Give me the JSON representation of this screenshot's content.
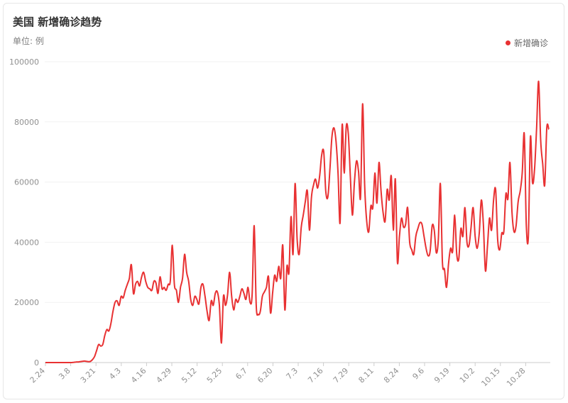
{
  "header": {
    "title": "美国 新增确诊趋势",
    "unit": "单位: 例"
  },
  "colors": {
    "series": "#e83132",
    "grid": "#f1f1f1",
    "axis": "#cccccc"
  },
  "chart_data": {
    "type": "line",
    "title": "美国 新增确诊趋势",
    "ylabel": "单位: 例",
    "xlabel": "",
    "ylim": [
      0,
      100000
    ],
    "yticks": [
      0,
      20000,
      40000,
      60000,
      80000,
      100000
    ],
    "xtick_labels": [
      "2.24",
      "3.8",
      "3.21",
      "4.3",
      "4.16",
      "4.29",
      "5.12",
      "5.25",
      "6.7",
      "6.20",
      "7.3",
      "7.16",
      "7.29",
      "8.11",
      "8.24",
      "9.6",
      "9.19",
      "10.2",
      "10.15",
      "10.28"
    ],
    "grid": true,
    "legend_position": "top-right",
    "series": [
      {
        "name": "新增确诊",
        "values": [
          0,
          0,
          0,
          0,
          0,
          0,
          0,
          0,
          0,
          0,
          0,
          0,
          0,
          0,
          100,
          200,
          200,
          300,
          400,
          500,
          400,
          300,
          400,
          1000,
          2000,
          4000,
          6000,
          5500,
          6000,
          9000,
          11000,
          10500,
          13000,
          17000,
          20000,
          20500,
          19000,
          22000,
          21500,
          24000,
          26000,
          28000,
          32500,
          23000,
          26000,
          27000,
          25500,
          28500,
          30000,
          27000,
          25000,
          24500,
          24000,
          27000,
          26500,
          23000,
          28500,
          24500,
          25000,
          24000,
          26000,
          27000,
          39000,
          26000,
          24000,
          20000,
          25000,
          28000,
          36000,
          30000,
          27000,
          21000,
          19000,
          22000,
          21000,
          19500,
          25000,
          26000,
          22000,
          17000,
          14000,
          20500,
          19000,
          23000,
          23500,
          19000,
          6500,
          22000,
          19000,
          22500,
          30000,
          22000,
          17500,
          21000,
          20000,
          22000,
          24500,
          23000,
          21000,
          25000,
          20000,
          22500,
          45500,
          19000,
          16000,
          17000,
          22000,
          23500,
          25000,
          28500,
          16500,
          23000,
          29000,
          27000,
          32000,
          28000,
          39000,
          17500,
          32000,
          30000,
          48500,
          36000,
          59500,
          41000,
          36000,
          45000,
          49000,
          53500,
          57000,
          44000,
          55000,
          59000,
          61000,
          58000,
          62000,
          69000,
          70000,
          57000,
          55000,
          64000,
          75000,
          78000,
          73500,
          63000,
          46500,
          79000,
          63000,
          78500,
          76000,
          62000,
          49000,
          60000,
          67000,
          63500,
          55000,
          86000,
          59000,
          47000,
          43500,
          52000,
          51500,
          63000,
          53000,
          66500,
          57000,
          50000,
          47000,
          57500,
          54000,
          62000,
          44000,
          61000,
          33500,
          42000,
          48000,
          45000,
          46000,
          51500,
          40000,
          37500,
          36000,
          42000,
          44500,
          46500,
          46000,
          42000,
          38000,
          35500,
          37000,
          45500,
          44000,
          36500,
          41000,
          59500,
          33500,
          31000,
          25000,
          33000,
          38000,
          37000,
          49000,
          36000,
          34500,
          44500,
          42000,
          51500,
          40000,
          39000,
          45000,
          51500,
          42000,
          38000,
          43000,
          54000,
          46000,
          30500,
          38500,
          48000,
          44000,
          54000,
          57500,
          41000,
          37500,
          43000,
          43500,
          56000,
          54500,
          66500,
          50000,
          43500,
          45500,
          53500,
          57000,
          63000,
          76000,
          45500,
          42000,
          75000,
          60000,
          64000,
          77500,
          93500,
          74000,
          66000,
          59000,
          78000,
          77500
        ]
      }
    ]
  }
}
